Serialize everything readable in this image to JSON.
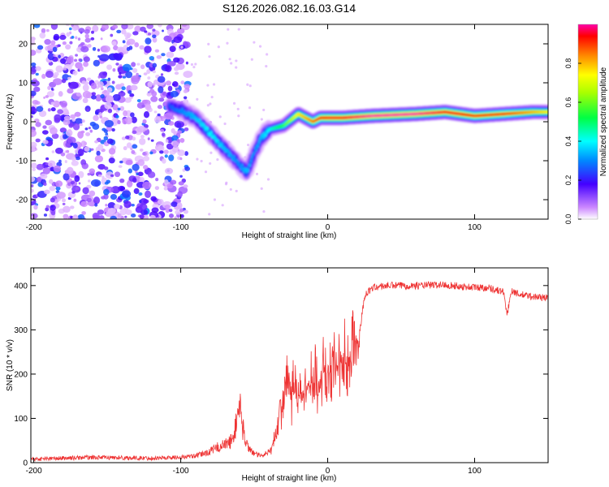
{
  "title": "S126.2026.082.16.03.G14",
  "chart_data": [
    {
      "type": "heatmap",
      "xlabel": "Height of straight line (km)",
      "ylabel": "Frequency (Hz)",
      "xlim": [
        -202,
        150
      ],
      "ylim": [
        -25,
        25
      ],
      "xticks": [
        -200,
        -100,
        0,
        100
      ],
      "yticks": [
        -20,
        -10,
        0,
        10,
        20
      ],
      "colorbar": {
        "label": "Normalized spectral amplitude",
        "range": [
          0,
          1
        ],
        "ticks": [
          0.0,
          0.2,
          0.4,
          0.6,
          0.8
        ],
        "tick_labels": [
          "0.0",
          "0.2",
          "0.4",
          "0.6",
          "0.8"
        ]
      },
      "ridge": {
        "x": [
          -108,
          -100,
          -90,
          -80,
          -70,
          -60,
          -55,
          -50,
          -45,
          -40,
          -30,
          -20,
          -15,
          -10,
          -5,
          0,
          10,
          30,
          60,
          80,
          90,
          100,
          120,
          140,
          150
        ],
        "y": [
          4,
          3,
          1,
          -3,
          -7,
          -11,
          -13,
          -8,
          -4,
          -2,
          -1,
          2,
          1,
          0,
          1,
          1,
          1,
          1.5,
          2,
          2.5,
          2,
          1.5,
          2,
          2.5,
          2.5
        ],
        "amplitude": [
          0.25,
          0.3,
          0.35,
          0.4,
          0.35,
          0.3,
          0.35,
          0.3,
          0.35,
          0.4,
          0.55,
          0.75,
          0.8,
          0.85,
          0.9,
          0.95,
          0.95,
          1.0,
          1.0,
          0.95,
          0.95,
          0.9,
          0.9,
          0.8,
          0.75
        ]
      },
      "noise_region": [
        -202,
        -95
      ]
    },
    {
      "type": "line",
      "xlabel": "Height of straight line (km)",
      "ylabel": "SNR (10 * v/v)",
      "xlim": [
        -202,
        150
      ],
      "ylim": [
        0,
        440
      ],
      "xticks": [
        -200,
        -100,
        0,
        100
      ],
      "yticks": [
        0,
        100,
        200,
        300,
        400
      ],
      "color": "#ee3333",
      "series_envelope": {
        "x": [
          -202,
          -180,
          -160,
          -140,
          -120,
          -100,
          -90,
          -80,
          -75,
          -70,
          -65,
          -62,
          -60,
          -58,
          -55,
          -50,
          -45,
          -40,
          -35,
          -32,
          -30,
          -28,
          -25,
          -20,
          -15,
          -10,
          -5,
          0,
          5,
          10,
          15,
          20,
          22,
          25,
          30,
          40,
          60,
          80,
          90,
          100,
          110,
          115,
          120,
          122,
          125,
          130,
          140,
          150
        ],
        "y": [
          8,
          10,
          12,
          11,
          10,
          12,
          15,
          25,
          35,
          40,
          50,
          90,
          140,
          80,
          40,
          20,
          15,
          25,
          60,
          130,
          160,
          200,
          170,
          150,
          170,
          180,
          190,
          200,
          210,
          220,
          240,
          260,
          300,
          375,
          395,
          400,
          400,
          402,
          398,
          396,
          395,
          390,
          385,
          330,
          390,
          380,
          375,
          372
        ]
      }
    }
  ]
}
